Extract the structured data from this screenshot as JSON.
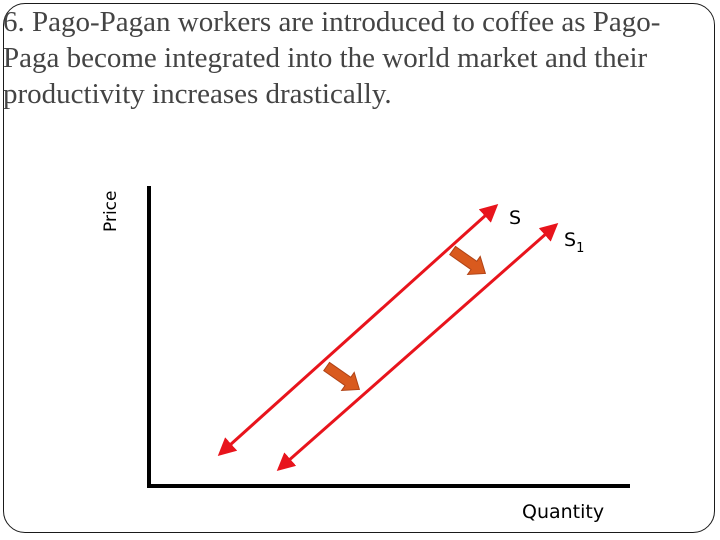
{
  "slide": {
    "title": "6. Pago-Pagan workers are introduced to coffee as Pago-Paga become integrated into the world market and their productivity increases drastically."
  },
  "diagram": {
    "y_axis_label": "Price",
    "x_axis_label": "Quantity",
    "curves": [
      {
        "name": "supply-curve-s",
        "label": "S",
        "label_sub": ""
      },
      {
        "name": "supply-curve-s1",
        "label": "S",
        "label_sub": "1"
      }
    ],
    "shift_arrows": 2,
    "colors": {
      "curve": "#e8141c",
      "shift_arrow_fill": "#d95a1e",
      "shift_arrow_stroke": "#b04316",
      "axis": "#000000",
      "title_text": "#444444",
      "border": "#1a1a1a"
    }
  }
}
